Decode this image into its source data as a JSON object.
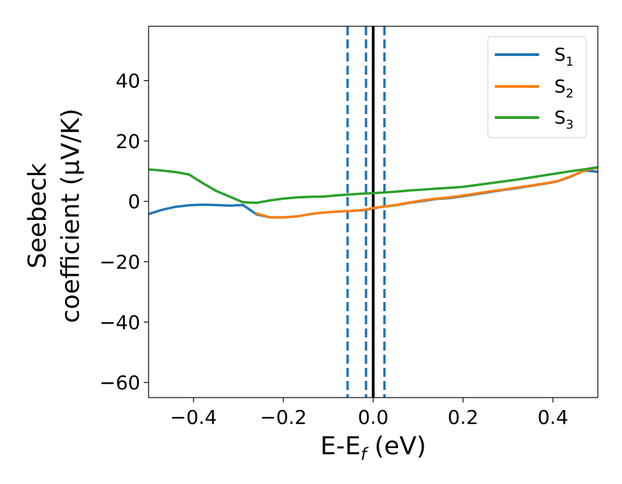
{
  "chart_data": {
    "type": "line",
    "title": "",
    "xlabel": "E-E",
    "xlabel_sub": "f",
    "xlabel_unit": " (eV)",
    "ylabel_line1": "Seebeck",
    "ylabel_line2": "coefficient  (μV/K)",
    "xlim": [
      -0.5,
      0.5
    ],
    "ylim": [
      -65,
      58
    ],
    "xticks": [
      -0.4,
      -0.2,
      0.0,
      0.2,
      0.4
    ],
    "xtick_labels": [
      "−0.4",
      "−0.2",
      "0.0",
      "0.2",
      "0.4"
    ],
    "yticks": [
      -60,
      -40,
      -20,
      0,
      20,
      40
    ],
    "ytick_labels": [
      "−60",
      "−40",
      "−20",
      "0",
      "20",
      "40"
    ],
    "legend_position": "top-right",
    "grid": false,
    "vlines": [
      {
        "x": -0.057,
        "style": "dashed",
        "color": "#1f77b4"
      },
      {
        "x": -0.016,
        "style": "dashed",
        "color": "#1f77b4"
      },
      {
        "x": 0.0,
        "style": "solid",
        "color": "#000000"
      },
      {
        "x": 0.025,
        "style": "dashed",
        "color": "#1f77b4"
      }
    ],
    "series": [
      {
        "name": "S",
        "sub": "1",
        "color": "#1f77b4",
        "x": [
          -0.5,
          -0.47,
          -0.44,
          -0.41,
          -0.38,
          -0.35,
          -0.32,
          -0.29,
          -0.26,
          -0.23,
          -0.2,
          -0.17,
          -0.14,
          -0.11,
          -0.08,
          -0.05,
          -0.02,
          0.0,
          0.02,
          0.05,
          0.08,
          0.11,
          0.14,
          0.17,
          0.2,
          0.23,
          0.26,
          0.29,
          0.32,
          0.35,
          0.38,
          0.41,
          0.44,
          0.47,
          0.5
        ],
        "y": [
          -4.2,
          -2.8,
          -1.8,
          -1.3,
          -1.1,
          -1.2,
          -1.4,
          -1.2,
          -4.3,
          -5.3,
          -5.3,
          -5.0,
          -4.2,
          -3.7,
          -3.4,
          -3.2,
          -2.9,
          -2.3,
          -1.8,
          -1.3,
          -0.5,
          0.1,
          0.8,
          1.1,
          1.7,
          2.4,
          3.1,
          3.8,
          4.4,
          5.1,
          5.8,
          6.6,
          8.2,
          10.2,
          9.8
        ]
      },
      {
        "name": "S",
        "sub": "2",
        "color": "#ff7f0e",
        "x": [
          -0.26,
          -0.23,
          -0.2,
          -0.17,
          -0.14,
          -0.11,
          -0.08,
          -0.05,
          -0.02,
          0.0,
          0.02,
          0.05,
          0.08,
          0.11,
          0.14,
          0.17,
          0.2,
          0.23,
          0.26,
          0.29,
          0.32,
          0.35,
          0.38,
          0.41,
          0.44,
          0.47,
          0.5
        ],
        "y": [
          -4.0,
          -5.3,
          -5.3,
          -5.0,
          -4.2,
          -3.7,
          -3.4,
          -3.2,
          -2.8,
          -2.2,
          -1.8,
          -1.2,
          -0.4,
          0.3,
          0.9,
          1.3,
          1.9,
          2.6,
          3.3,
          3.9,
          4.6,
          5.2,
          5.9,
          6.7,
          8.3,
          10.2,
          11.2
        ]
      },
      {
        "name": "S",
        "sub": "3",
        "color": "#2ca02c",
        "x": [
          -0.5,
          -0.47,
          -0.44,
          -0.41,
          -0.38,
          -0.35,
          -0.32,
          -0.29,
          -0.26,
          -0.23,
          -0.2,
          -0.17,
          -0.14,
          -0.11,
          -0.08,
          -0.05,
          -0.02,
          0.0,
          0.02,
          0.05,
          0.08,
          0.11,
          0.14,
          0.17,
          0.2,
          0.23,
          0.26,
          0.29,
          0.32,
          0.35,
          0.38,
          0.41,
          0.44,
          0.47,
          0.5
        ],
        "y": [
          10.6,
          10.2,
          9.7,
          8.9,
          6.1,
          3.5,
          1.6,
          -0.3,
          -0.5,
          0.3,
          0.9,
          1.3,
          1.5,
          1.6,
          2.0,
          2.3,
          2.6,
          2.7,
          2.9,
          3.2,
          3.6,
          3.9,
          4.2,
          4.5,
          4.8,
          5.4,
          6.0,
          6.6,
          7.2,
          7.9,
          8.6,
          9.3,
          10.0,
          10.6,
          11.3
        ]
      }
    ]
  }
}
